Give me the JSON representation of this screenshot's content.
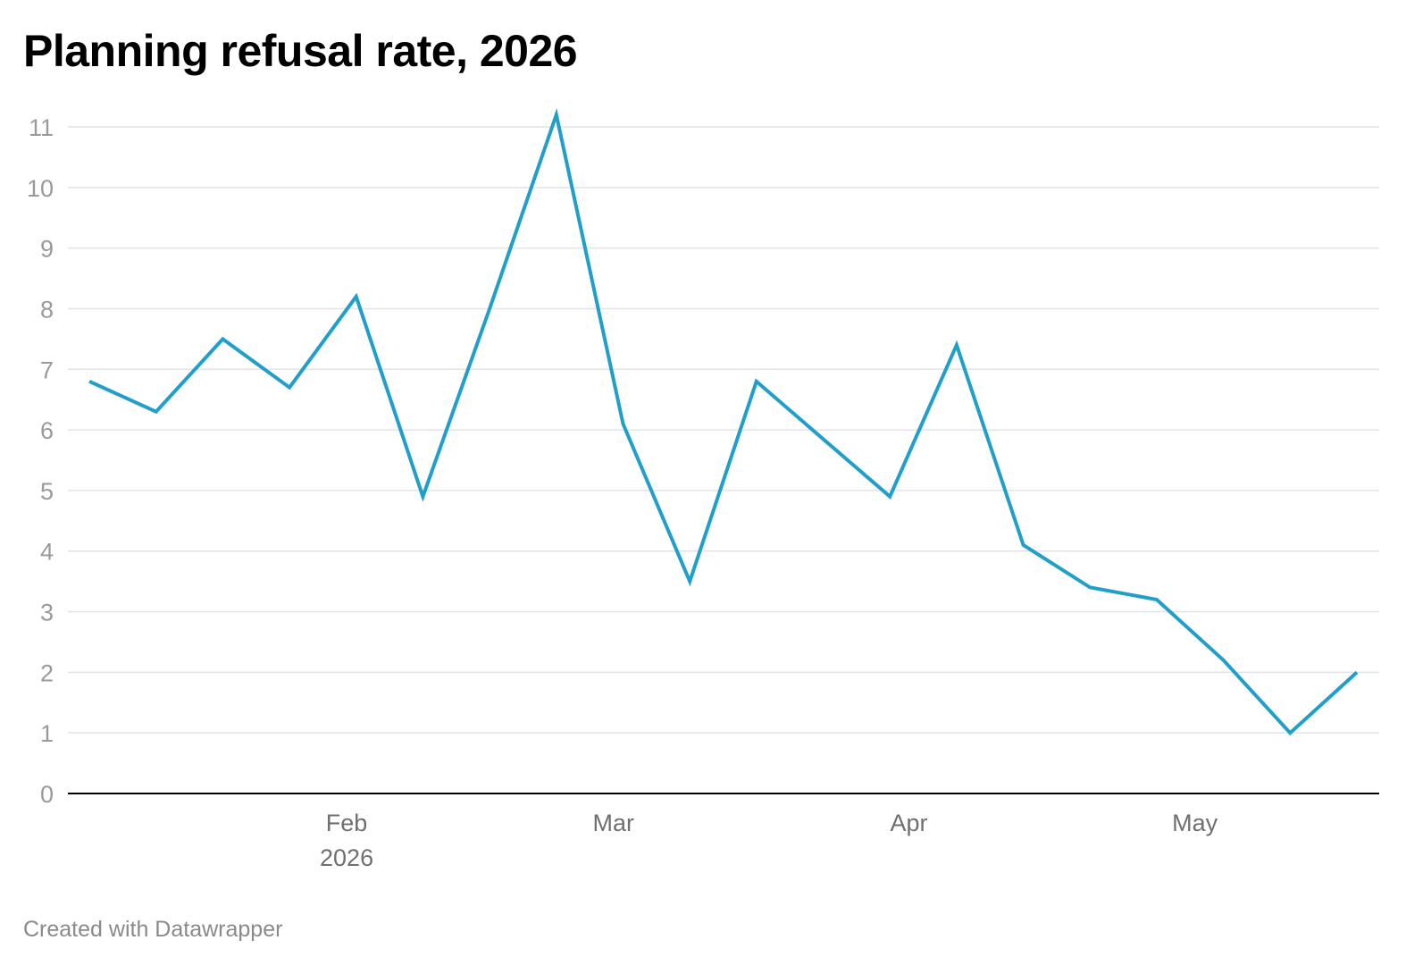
{
  "chart_data": {
    "type": "line",
    "title": "Planning refusal rate, 2026",
    "xlabel": "",
    "ylabel": "",
    "x": [
      "2026-01-05",
      "2026-01-12",
      "2026-01-19",
      "2026-01-26",
      "2026-02-02",
      "2026-02-09",
      "2026-02-16",
      "2026-02-23",
      "2026-03-02",
      "2026-03-09",
      "2026-03-16",
      "2026-03-23",
      "2026-03-30",
      "2026-04-06",
      "2026-04-13",
      "2026-04-20",
      "2026-04-27",
      "2026-05-04",
      "2026-05-11",
      "2026-05-18"
    ],
    "series": [
      {
        "values": [
          6.8,
          6.3,
          7.5,
          6.7,
          8.2,
          4.9,
          8.0,
          11.2,
          6.1,
          3.5,
          6.8,
          5.85,
          4.9,
          7.4,
          4.1,
          3.4,
          3.2,
          2.2,
          1.0,
          2.0
        ],
        "color": "#1f9fc9"
      }
    ],
    "ylim": [
      0,
      11
    ],
    "yticks": [
      "0",
      "1",
      "2",
      "3",
      "4",
      "5",
      "6",
      "7",
      "8",
      "9",
      "10",
      "11"
    ],
    "xticks": [
      {
        "date": "2026-02-01",
        "label": "Feb",
        "sublabel": "2026"
      },
      {
        "date": "2026-03-01",
        "label": "Mar",
        "sublabel": ""
      },
      {
        "date": "2026-04-01",
        "label": "Apr",
        "sublabel": ""
      },
      {
        "date": "2026-05-01",
        "label": "May",
        "sublabel": ""
      }
    ],
    "grid": true,
    "gridline_color": "#e3e3e3",
    "baseline_color": "#000000"
  },
  "footer": {
    "credit": "Created with Datawrapper"
  }
}
